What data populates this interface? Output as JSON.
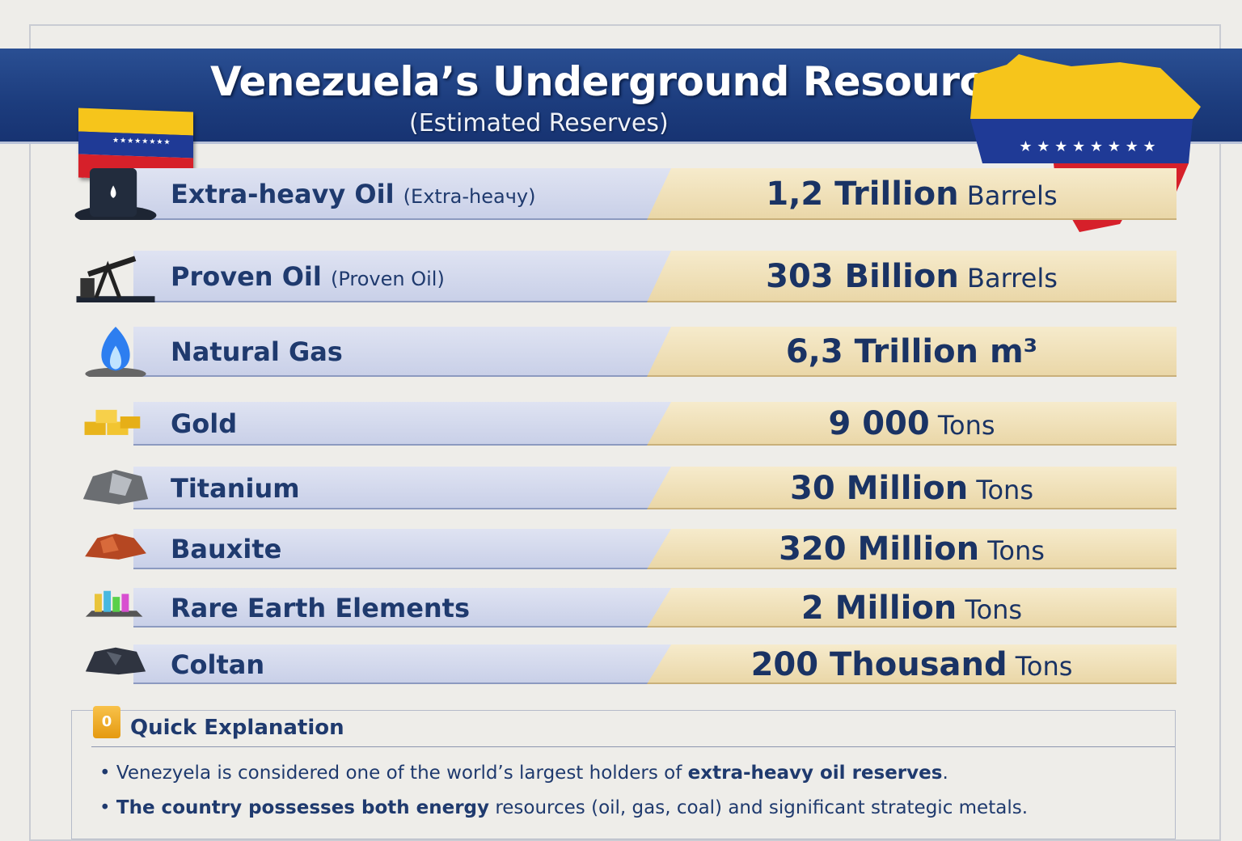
{
  "header": {
    "title": "Venezuela’s Underground Resources",
    "subtitle": "(Estimated Reserves)"
  },
  "colors": {
    "header": "#1c3c7d",
    "label_bar": "#d5dbee",
    "value_bar": "#efdfb8",
    "text": "#1f3a6e",
    "flag_yellow": "#f6c51b",
    "flag_blue": "#1f3a96",
    "flag_red": "#d6202a"
  },
  "resources": [
    {
      "icon": "oil-barrel-icon",
      "name": "Extra-heavy Oil",
      "note": "(Extra-heaчy)",
      "amount": "1,2 Trillion",
      "unit": "Barrels"
    },
    {
      "icon": "oil-pump-icon",
      "name": "Proven Oil",
      "note": "(Proven Oil)",
      "amount": "303 Billion",
      "unit": "Barrels"
    },
    {
      "icon": "gas-flame-icon",
      "name": "Natural Gas",
      "note": "",
      "amount": "6,3 Trillion m³",
      "unit": ""
    },
    {
      "icon": "gold-bars-icon",
      "name": "Gold",
      "note": "",
      "amount": "9 000",
      "unit": "Tons"
    },
    {
      "icon": "titanium-ore-icon",
      "name": "Titanium",
      "note": "",
      "amount": "30 Million",
      "unit": "Tons"
    },
    {
      "icon": "bauxite-ore-icon",
      "name": "Bauxite",
      "note": "",
      "amount": "320 Million",
      "unit": "Tons"
    },
    {
      "icon": "crystals-icon",
      "name": "Rare Earth Elements",
      "note": "",
      "amount": "2 Million",
      "unit": "Tons"
    },
    {
      "icon": "coltan-ore-icon",
      "name": "Coltan",
      "note": "",
      "amount": "200 Thousand",
      "unit": "Tons"
    }
  ],
  "explanation": {
    "badge": "0",
    "title": "Quick Explanation",
    "bullets": [
      {
        "plain": "Venezyela is considered one of the world’s largest holders of ",
        "bold": "extra-heavy oil reserves",
        "after": "."
      },
      {
        "bold": "The country possesses both energy",
        "plain": " resources (oil, gas, coal) and significant strategic metals.",
        "after": ""
      }
    ]
  }
}
